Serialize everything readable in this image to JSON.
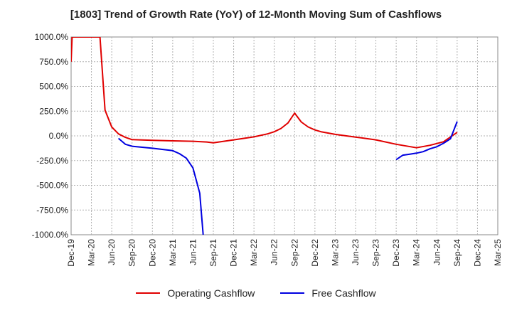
{
  "chart_data": {
    "type": "line",
    "title": "[1803]  Trend of Growth Rate (YoY) of 12-Month Moving Sum of Cashflows",
    "xlabel": "",
    "ylabel": "",
    "categories": [
      "Dec-19",
      "Mar-20",
      "Jun-20",
      "Sep-20",
      "Dec-20",
      "Mar-21",
      "Jun-21",
      "Sep-21",
      "Dec-21",
      "Mar-22",
      "Jun-22",
      "Sep-22",
      "Dec-22",
      "Mar-23",
      "Jun-23",
      "Sep-23",
      "Dec-23",
      "Mar-24",
      "Jun-24",
      "Sep-24",
      "Dec-24",
      "Mar-25"
    ],
    "y_ticks": [
      1000,
      750,
      500,
      250,
      0,
      -250,
      -500,
      -750,
      -1000
    ],
    "y_tick_labels": [
      "1000.0%",
      "750.0%",
      "500.0%",
      "250.0%",
      "0.0%",
      "-250.0%",
      "-500.0%",
      "-750.0%",
      "-1000.0%"
    ],
    "ylim": [
      -1000,
      1000
    ],
    "grid": true,
    "legend_position": "bottom",
    "series": [
      {
        "name": "Operating Cashflow",
        "color": "#e00000",
        "points": [
          [
            0,
            750
          ],
          [
            0.05,
            1000
          ],
          [
            1.42,
            1000
          ],
          [
            1.67,
            260
          ],
          [
            2.0,
            90
          ],
          [
            2.33,
            20
          ],
          [
            2.67,
            -15
          ],
          [
            3.0,
            -38
          ],
          [
            4.0,
            -45
          ],
          [
            5.0,
            -50
          ],
          [
            6.0,
            -55
          ],
          [
            6.67,
            -62
          ],
          [
            7.0,
            -70
          ],
          [
            8.0,
            -40
          ],
          [
            9.0,
            -10
          ],
          [
            9.67,
            20
          ],
          [
            10.0,
            42
          ],
          [
            10.33,
            75
          ],
          [
            10.67,
            130
          ],
          [
            11.0,
            230
          ],
          [
            11.33,
            140
          ],
          [
            11.67,
            90
          ],
          [
            12.0,
            60
          ],
          [
            12.33,
            40
          ],
          [
            13.0,
            15
          ],
          [
            14.0,
            -12
          ],
          [
            15.0,
            -40
          ],
          [
            16.0,
            -85
          ],
          [
            17.0,
            -120
          ],
          [
            17.67,
            -95
          ],
          [
            18.33,
            -60
          ],
          [
            19.0,
            35
          ]
        ]
      },
      {
        "name": "Free Cashflow",
        "color": "#0000e0",
        "points": [
          [
            2.33,
            -25
          ],
          [
            2.67,
            -85
          ],
          [
            3.0,
            -105
          ],
          [
            4.0,
            -125
          ],
          [
            5.0,
            -150
          ],
          [
            5.33,
            -180
          ],
          [
            5.67,
            -225
          ],
          [
            6.0,
            -325
          ],
          [
            6.33,
            -580
          ],
          [
            6.5,
            -1000
          ]
        ],
        "points_2": [
          [
            16.0,
            -240
          ],
          [
            16.33,
            -195
          ],
          [
            16.67,
            -185
          ],
          [
            17.0,
            -175
          ],
          [
            17.33,
            -160
          ],
          [
            17.67,
            -130
          ],
          [
            18.0,
            -110
          ],
          [
            18.33,
            -75
          ],
          [
            18.67,
            -30
          ],
          [
            19.0,
            145
          ]
        ]
      }
    ]
  }
}
